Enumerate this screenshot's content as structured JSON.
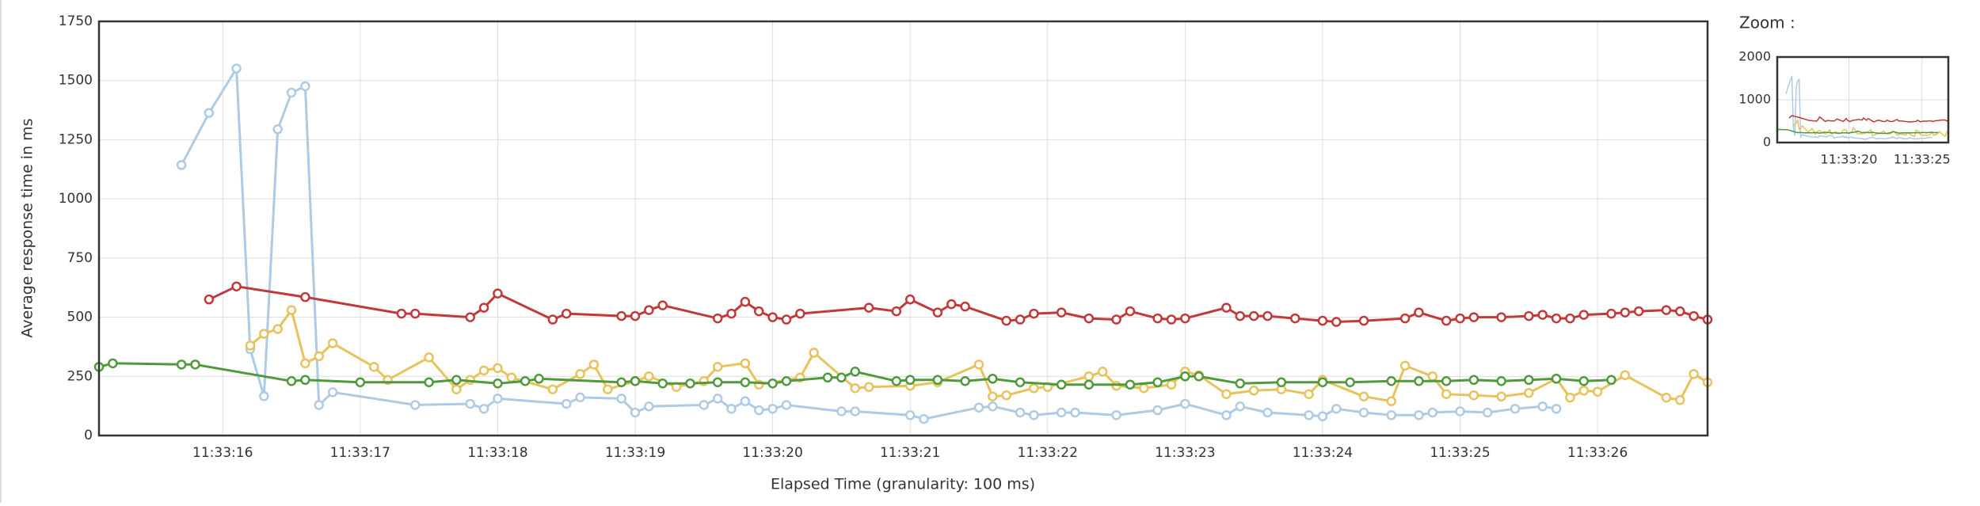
{
  "chart_data": [
    {
      "type": "line",
      "y_label": "Average response time in ms",
      "x_label": "Elapsed Time (granularity: 100 ms)",
      "xlim": [
        15.1,
        26.8
      ],
      "ylim": [
        0,
        1750
      ],
      "yticks": [
        0,
        250,
        500,
        750,
        1000,
        1250,
        1500,
        1750
      ],
      "xticks": [
        {
          "value": 16,
          "label": "11:33:16"
        },
        {
          "value": 17,
          "label": "11:33:17"
        },
        {
          "value": 18,
          "label": "11:33:18"
        },
        {
          "value": 19,
          "label": "11:33:19"
        },
        {
          "value": 20,
          "label": "11:33:20"
        },
        {
          "value": 21,
          "label": "11:33:21"
        },
        {
          "value": 22,
          "label": "11:33:22"
        },
        {
          "value": 23,
          "label": "11:33:23"
        },
        {
          "value": 24,
          "label": "11:33:24"
        },
        {
          "value": 25,
          "label": "11:33:25"
        },
        {
          "value": 26,
          "label": "11:33:26"
        }
      ],
      "grid": true,
      "series": [
        {
          "color": "#aecbe6",
          "x": [
            15.7,
            15.9,
            16.1,
            16.2,
            16.3,
            16.4,
            16.5,
            16.6,
            16.7,
            16.8,
            17.4,
            17.8,
            17.9,
            18.0,
            18.5,
            18.6,
            18.9,
            19.0,
            19.1,
            19.5,
            19.6,
            19.7,
            19.8,
            19.9,
            20.0,
            20.1,
            20.5,
            20.6,
            21.0,
            21.1,
            21.5,
            21.6,
            21.8,
            21.9,
            22.1,
            22.2,
            22.5,
            22.8,
            23.0,
            23.3,
            23.4,
            23.6,
            23.9,
            24.0,
            24.1,
            24.3,
            24.5,
            24.7,
            24.8,
            25.0,
            25.2,
            25.4,
            25.6,
            25.7
          ],
          "values": [
            1143,
            1363,
            1551,
            365,
            166,
            1294,
            1449,
            1476,
            129,
            183,
            129,
            134,
            113,
            156,
            134,
            161,
            156,
            97,
            123,
            129,
            156,
            113,
            145,
            107,
            113,
            129,
            102,
            102,
            86,
            70,
            118,
            123,
            97,
            86,
            97,
            97,
            86,
            107,
            134,
            86,
            123,
            97,
            86,
            81,
            113,
            97,
            86,
            86,
            97,
            102,
            97,
            113,
            123,
            113
          ]
        },
        {
          "color": "#c0393b",
          "x": [
            15.9,
            16.1,
            16.6,
            17.3,
            17.4,
            17.8,
            17.9,
            18.0,
            18.4,
            18.5,
            18.9,
            19.0,
            19.1,
            19.2,
            19.6,
            19.7,
            19.8,
            19.9,
            20.0,
            20.1,
            20.2,
            20.7,
            20.9,
            21.0,
            21.2,
            21.3,
            21.4,
            21.7,
            21.8,
            21.9,
            22.1,
            22.3,
            22.5,
            22.6,
            22.8,
            22.9,
            23.0,
            23.3,
            23.4,
            23.5,
            23.6,
            23.8,
            24.0,
            24.1,
            24.3,
            24.6,
            24.7,
            24.9,
            25.0,
            25.1,
            25.3,
            25.5,
            25.6,
            25.7,
            25.8,
            25.9,
            26.1,
            26.2,
            26.3,
            26.5,
            26.6,
            26.7,
            26.8
          ],
          "values": [
            575,
            630,
            585,
            515,
            515,
            500,
            540,
            600,
            490,
            515,
            505,
            505,
            530,
            550,
            495,
            515,
            565,
            525,
            500,
            490,
            515,
            540,
            525,
            575,
            520,
            555,
            545,
            485,
            490,
            515,
            520,
            495,
            490,
            525,
            495,
            490,
            495,
            540,
            505,
            505,
            505,
            495,
            485,
            480,
            485,
            495,
            520,
            485,
            495,
            500,
            500,
            505,
            510,
            495,
            495,
            510,
            515,
            520,
            525,
            530,
            525,
            505,
            490
          ]
        },
        {
          "color": "#e8c25a",
          "x": [
            16.2,
            16.3,
            16.4,
            16.5,
            16.6,
            16.7,
            16.8,
            17.1,
            17.2,
            17.5,
            17.7,
            17.8,
            17.9,
            18.0,
            18.1,
            18.4,
            18.6,
            18.7,
            18.8,
            19.0,
            19.1,
            19.3,
            19.5,
            19.6,
            19.8,
            19.9,
            20.2,
            20.3,
            20.6,
            20.7,
            21.0,
            21.2,
            21.5,
            21.6,
            21.7,
            21.9,
            22.0,
            22.3,
            22.4,
            22.5,
            22.7,
            22.9,
            23.0,
            23.1,
            23.3,
            23.5,
            23.7,
            23.9,
            24.0,
            24.3,
            24.5,
            24.6,
            24.8,
            24.9,
            25.1,
            25.3,
            25.5,
            25.7,
            25.8,
            25.9,
            26.0,
            26.2,
            26.5,
            26.6,
            26.7,
            26.8
          ],
          "values": [
            380,
            430,
            450,
            530,
            305,
            335,
            390,
            290,
            235,
            330,
            195,
            235,
            275,
            285,
            245,
            195,
            260,
            300,
            195,
            230,
            250,
            205,
            230,
            290,
            305,
            215,
            245,
            350,
            200,
            205,
            210,
            225,
            300,
            165,
            170,
            200,
            205,
            250,
            270,
            210,
            200,
            215,
            270,
            255,
            175,
            190,
            195,
            175,
            235,
            165,
            145,
            295,
            250,
            175,
            170,
            165,
            180,
            240,
            160,
            190,
            185,
            255,
            160,
            150,
            260,
            225
          ]
        },
        {
          "color": "#4e9a3c",
          "x": [
            15.1,
            15.2,
            15.7,
            15.8,
            16.5,
            16.6,
            17.0,
            17.5,
            17.7,
            18.0,
            18.2,
            18.3,
            18.9,
            19.0,
            19.2,
            19.4,
            19.6,
            19.8,
            20.0,
            20.1,
            20.4,
            20.5,
            20.6,
            20.9,
            21.0,
            21.2,
            21.4,
            21.6,
            21.8,
            22.1,
            22.3,
            22.6,
            22.8,
            23.0,
            23.1,
            23.4,
            23.7,
            24.0,
            24.2,
            24.5,
            24.7,
            24.9,
            25.1,
            25.3,
            25.5,
            25.7,
            25.9,
            26.1
          ],
          "values": [
            290,
            305,
            300,
            300,
            230,
            235,
            225,
            225,
            235,
            220,
            230,
            240,
            225,
            230,
            220,
            220,
            225,
            225,
            220,
            230,
            245,
            245,
            270,
            230,
            235,
            235,
            230,
            240,
            225,
            215,
            215,
            215,
            225,
            250,
            250,
            220,
            225,
            225,
            225,
            230,
            230,
            230,
            235,
            230,
            235,
            240,
            230,
            235
          ]
        }
      ]
    },
    {
      "type": "line",
      "title": "Zoom :",
      "xlim": [
        15.1,
        26.8
      ],
      "ylim": [
        0,
        2000
      ],
      "yticks": [
        0,
        1000,
        2000
      ],
      "xticks": [
        {
          "value": 20,
          "label": "11:33:20"
        },
        {
          "value": 25,
          "label": "11:33:25"
        }
      ],
      "grid": true
    }
  ]
}
